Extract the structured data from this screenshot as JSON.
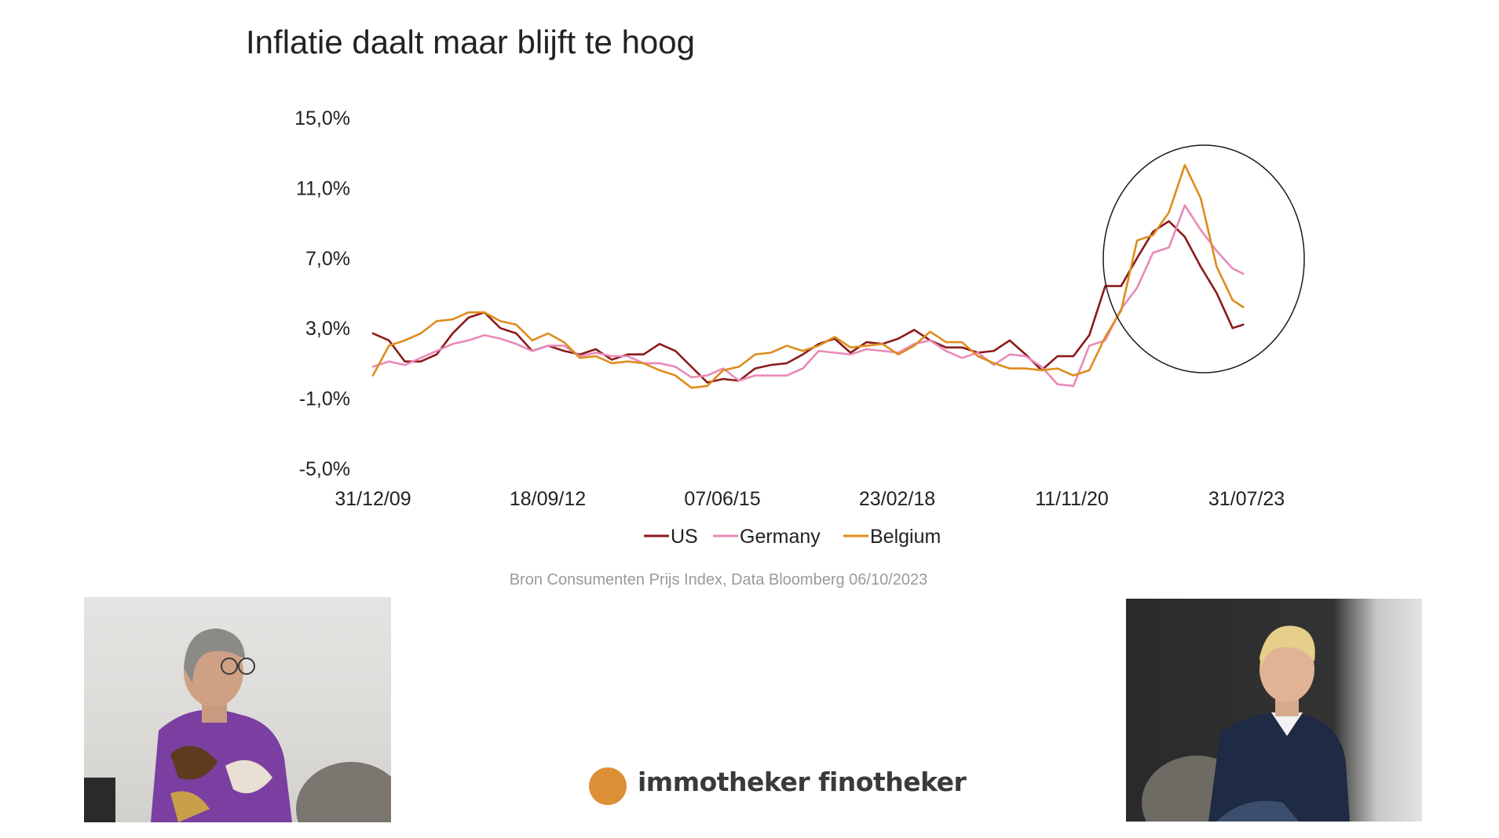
{
  "chart_data": {
    "type": "line",
    "title": "Inflatie daalt maar blijft te hoog",
    "source": "Bron Consumenten Prijs Index, Data Bloomberg 06/10/2023",
    "y_ticks": [
      "15,0%",
      "11,0%",
      "7,0%",
      "3,0%",
      "-1,0%",
      "-5,0%"
    ],
    "ylim": [
      -5,
      15
    ],
    "x_ticks": [
      "31/12/09",
      "18/09/12",
      "07/06/15",
      "23/02/18",
      "11/11/20",
      "31/07/23"
    ],
    "x_range": [
      "2009-12-31",
      "2023-09-30"
    ],
    "legend_position": "bottom",
    "grid": false,
    "annotation": "circle around 2021–2023 peak",
    "series": [
      {
        "name": "US",
        "color": "#8b1a1a",
        "x": [
          "2009-12",
          "2010-03",
          "2010-06",
          "2010-09",
          "2010-12",
          "2011-03",
          "2011-06",
          "2011-09",
          "2011-12",
          "2012-03",
          "2012-06",
          "2012-09",
          "2012-12",
          "2013-03",
          "2013-06",
          "2013-09",
          "2013-12",
          "2014-03",
          "2014-06",
          "2014-09",
          "2014-12",
          "2015-03",
          "2015-06",
          "2015-09",
          "2015-12",
          "2016-03",
          "2016-06",
          "2016-09",
          "2016-12",
          "2017-03",
          "2017-06",
          "2017-09",
          "2017-12",
          "2018-03",
          "2018-06",
          "2018-09",
          "2018-12",
          "2019-03",
          "2019-06",
          "2019-09",
          "2019-12",
          "2020-03",
          "2020-06",
          "2020-09",
          "2020-12",
          "2021-03",
          "2021-06",
          "2021-09",
          "2021-12",
          "2022-03",
          "2022-06",
          "2022-09",
          "2022-12",
          "2023-03",
          "2023-06",
          "2023-08"
        ],
        "values": [
          2.7,
          2.3,
          1.1,
          1.1,
          1.5,
          2.7,
          3.6,
          3.9,
          3.0,
          2.7,
          1.7,
          2.0,
          1.7,
          1.5,
          1.8,
          1.2,
          1.5,
          1.5,
          2.1,
          1.7,
          0.8,
          -0.1,
          0.1,
          0.0,
          0.7,
          0.9,
          1.0,
          1.5,
          2.1,
          2.4,
          1.6,
          2.2,
          2.1,
          2.4,
          2.9,
          2.3,
          1.9,
          1.9,
          1.6,
          1.7,
          2.3,
          1.5,
          0.6,
          1.4,
          1.4,
          2.6,
          5.4,
          5.4,
          7.0,
          8.5,
          9.1,
          8.2,
          6.5,
          5.0,
          3.0,
          3.2
        ]
      },
      {
        "name": "Germany",
        "color": "#e88ab9",
        "x": [
          "2009-12",
          "2010-03",
          "2010-06",
          "2010-09",
          "2010-12",
          "2011-03",
          "2011-06",
          "2011-09",
          "2011-12",
          "2012-03",
          "2012-06",
          "2012-09",
          "2012-12",
          "2013-03",
          "2013-06",
          "2013-09",
          "2013-12",
          "2014-03",
          "2014-06",
          "2014-09",
          "2014-12",
          "2015-03",
          "2015-06",
          "2015-09",
          "2015-12",
          "2016-03",
          "2016-06",
          "2016-09",
          "2016-12",
          "2017-03",
          "2017-06",
          "2017-09",
          "2017-12",
          "2018-03",
          "2018-06",
          "2018-09",
          "2018-12",
          "2019-03",
          "2019-06",
          "2019-09",
          "2019-12",
          "2020-03",
          "2020-06",
          "2020-09",
          "2020-12",
          "2021-03",
          "2021-06",
          "2021-09",
          "2021-12",
          "2022-03",
          "2022-06",
          "2022-09",
          "2022-12",
          "2023-03",
          "2023-06",
          "2023-08"
        ],
        "values": [
          0.8,
          1.1,
          0.9,
          1.3,
          1.7,
          2.1,
          2.3,
          2.6,
          2.4,
          2.1,
          1.7,
          2.0,
          2.0,
          1.4,
          1.6,
          1.4,
          1.4,
          1.0,
          1.0,
          0.8,
          0.2,
          0.3,
          0.7,
          0.0,
          0.3,
          0.3,
          0.3,
          0.7,
          1.7,
          1.6,
          1.5,
          1.8,
          1.7,
          1.6,
          2.1,
          2.3,
          1.7,
          1.3,
          1.6,
          0.9,
          1.5,
          1.4,
          0.8,
          -0.2,
          -0.3,
          2.0,
          2.3,
          4.1,
          5.3,
          7.3,
          7.6,
          10.0,
          8.6,
          7.4,
          6.4,
          6.1
        ]
      },
      {
        "name": "Belgium",
        "color": "#de8c1d",
        "x": [
          "2009-12",
          "2010-03",
          "2010-06",
          "2010-09",
          "2010-12",
          "2011-03",
          "2011-06",
          "2011-09",
          "2011-12",
          "2012-03",
          "2012-06",
          "2012-09",
          "2012-12",
          "2013-03",
          "2013-06",
          "2013-09",
          "2013-12",
          "2014-03",
          "2014-06",
          "2014-09",
          "2014-12",
          "2015-03",
          "2015-06",
          "2015-09",
          "2015-12",
          "2016-03",
          "2016-06",
          "2016-09",
          "2016-12",
          "2017-03",
          "2017-06",
          "2017-09",
          "2017-12",
          "2018-03",
          "2018-06",
          "2018-09",
          "2018-12",
          "2019-03",
          "2019-06",
          "2019-09",
          "2019-12",
          "2020-03",
          "2020-06",
          "2020-09",
          "2020-12",
          "2021-03",
          "2021-06",
          "2021-09",
          "2021-12",
          "2022-03",
          "2022-06",
          "2022-09",
          "2022-12",
          "2023-03",
          "2023-06",
          "2023-08"
        ],
        "values": [
          0.3,
          2.0,
          2.3,
          2.7,
          3.4,
          3.5,
          3.9,
          3.9,
          3.4,
          3.2,
          2.3,
          2.7,
          2.2,
          1.3,
          1.4,
          1.0,
          1.1,
          1.0,
          0.6,
          0.3,
          -0.4,
          -0.3,
          0.6,
          0.8,
          1.5,
          1.6,
          2.0,
          1.7,
          2.0,
          2.5,
          1.9,
          2.0,
          2.1,
          1.5,
          2.0,
          2.8,
          2.2,
          2.2,
          1.4,
          1.0,
          0.7,
          0.7,
          0.6,
          0.7,
          0.3,
          0.6,
          2.5,
          4.0,
          8.0,
          8.3,
          9.6,
          12.3,
          10.4,
          6.5,
          4.6,
          4.2
        ]
      }
    ]
  },
  "legend": {
    "items": [
      "US",
      "Germany",
      "Belgium"
    ]
  },
  "brand": {
    "name": "immotheker finotheker",
    "dot_color": "#dd8f36"
  }
}
